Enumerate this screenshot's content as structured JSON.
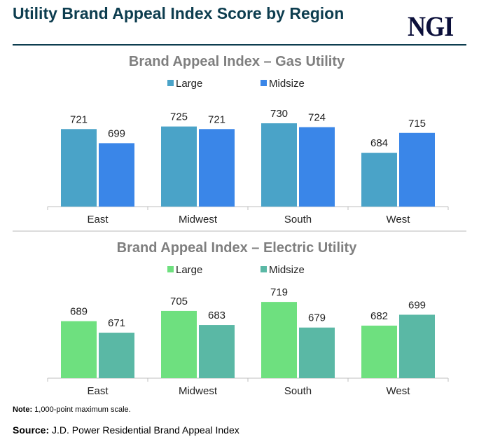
{
  "title": "Utility Brand Appeal Index Score by Region",
  "logo": "NGI",
  "note": {
    "label": "Note:",
    "text": " 1,000-point maximum scale."
  },
  "source": {
    "label": "Source:",
    "text": " J.D. Power Residential Brand Appeal Index"
  },
  "chart_data": [
    {
      "type": "bar",
      "title": "Brand Appeal Index – Gas Utility",
      "categories": [
        "East",
        "Midwest",
        "South",
        "West"
      ],
      "series": [
        {
          "name": "Large",
          "values": [
            721,
            725,
            730,
            684
          ],
          "color": "#4aa3c8"
        },
        {
          "name": "Midsize",
          "values": [
            699,
            721,
            724,
            715
          ],
          "color": "#3a86e8"
        }
      ],
      "ylim": [
        600,
        800
      ],
      "grid": false,
      "legend": "top"
    },
    {
      "type": "bar",
      "title": "Brand Appeal Index – Electric Utility",
      "categories": [
        "East",
        "Midwest",
        "South",
        "West"
      ],
      "series": [
        {
          "name": "Large",
          "values": [
            689,
            705,
            719,
            682
          ],
          "color": "#6ee07f"
        },
        {
          "name": "Midsize",
          "values": [
            671,
            683,
            679,
            699
          ],
          "color": "#5ab8a5"
        }
      ],
      "ylim": [
        600,
        800
      ],
      "grid": false,
      "legend": "top"
    }
  ]
}
